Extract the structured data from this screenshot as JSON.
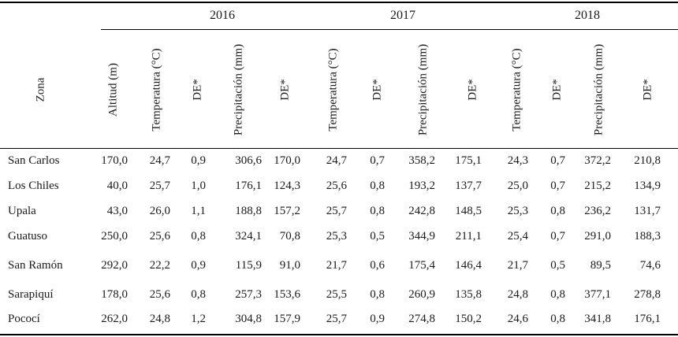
{
  "years": [
    "2016",
    "2017",
    "2018"
  ],
  "column_headers": {
    "zona": "Zona",
    "altitud": "Altitud (m)",
    "temperatura": "Temperatura (°C)",
    "de": "DE*",
    "precipitacion": "Precipitación (mm)"
  },
  "rows": [
    {
      "zona": "San Carlos",
      "altitud": "170,0",
      "values": [
        "24,7",
        "0,9",
        "306,6",
        "170,0",
        "24,7",
        "0,7",
        "358,2",
        "175,1",
        "24,3",
        "0,7",
        "372,2",
        "210,8"
      ]
    },
    {
      "zona": "Los Chiles",
      "altitud": "40,0",
      "values": [
        "25,7",
        "1,0",
        "176,1",
        "124,3",
        "25,6",
        "0,8",
        "193,2",
        "137,7",
        "25,0",
        "0,7",
        "215,2",
        "134,9"
      ]
    },
    {
      "zona": "Upala",
      "altitud": "43,0",
      "values": [
        "26,0",
        "1,1",
        "188,8",
        "157,2",
        "25,7",
        "0,8",
        "242,8",
        "148,5",
        "25,3",
        "0,8",
        "236,2",
        "131,7"
      ]
    },
    {
      "zona": "Guatuso",
      "altitud": "250,0",
      "values": [
        "25,6",
        "0,8",
        "324,1",
        "70,8",
        "25,3",
        "0,5",
        "344,9",
        "211,1",
        "25,4",
        "0,7",
        "291,0",
        "188,3"
      ]
    },
    {
      "zona": "San Ramón",
      "altitud": "292,0",
      "values": [
        "22,2",
        "0,9",
        "115,9",
        "91,0",
        "21,7",
        "0,6",
        "175,4",
        "146,4",
        "21,7",
        "0,5",
        "89,5",
        "74,6"
      ]
    },
    {
      "zona": "Sarapiquí",
      "altitud": "178,0",
      "values": [
        "25,6",
        "0,8",
        "257,3",
        "153,6",
        "25,5",
        "0,8",
        "260,9",
        "135,8",
        "24,8",
        "0,8",
        "377,1",
        "278,8"
      ]
    },
    {
      "zona": "Pococí",
      "altitud": "262,0",
      "values": [
        "24,8",
        "1,2",
        "304,8",
        "157,9",
        "25,7",
        "0,9",
        "274,8",
        "150,2",
        "24,6",
        "0,8",
        "341,8",
        "176,1"
      ]
    }
  ]
}
